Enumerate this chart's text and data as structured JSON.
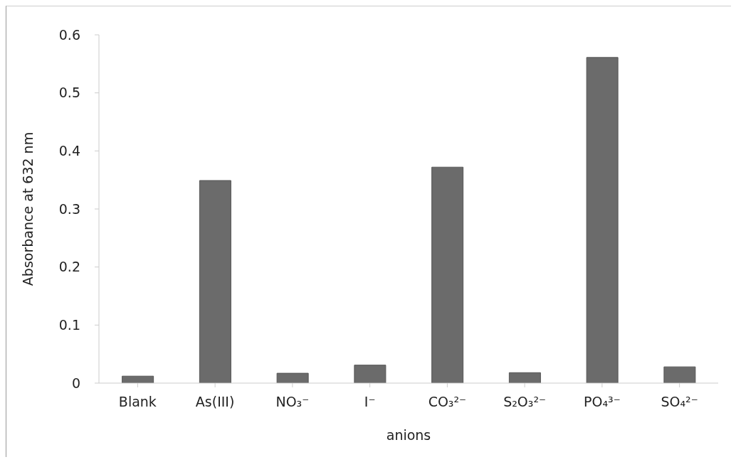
{
  "chart_data": {
    "type": "bar",
    "xlabel": "anions",
    "ylabel": "Absorbance  at 632 nm",
    "categories": [
      "Blank",
      "As(III)",
      "NO₃⁻",
      "I⁻",
      "CO₃²⁻",
      "S₂O₃²⁻",
      "PO₄³⁻",
      "SO₄²⁻"
    ],
    "values": [
      0.012,
      0.349,
      0.017,
      0.031,
      0.372,
      0.018,
      0.561,
      0.028
    ],
    "color": "#6b6b6b",
    "ylim": [
      0,
      0.6
    ],
    "yticks": [
      0,
      0.1,
      0.2,
      0.3,
      0.4,
      0.5,
      0.6
    ],
    "grid": false,
    "legend": false
  }
}
